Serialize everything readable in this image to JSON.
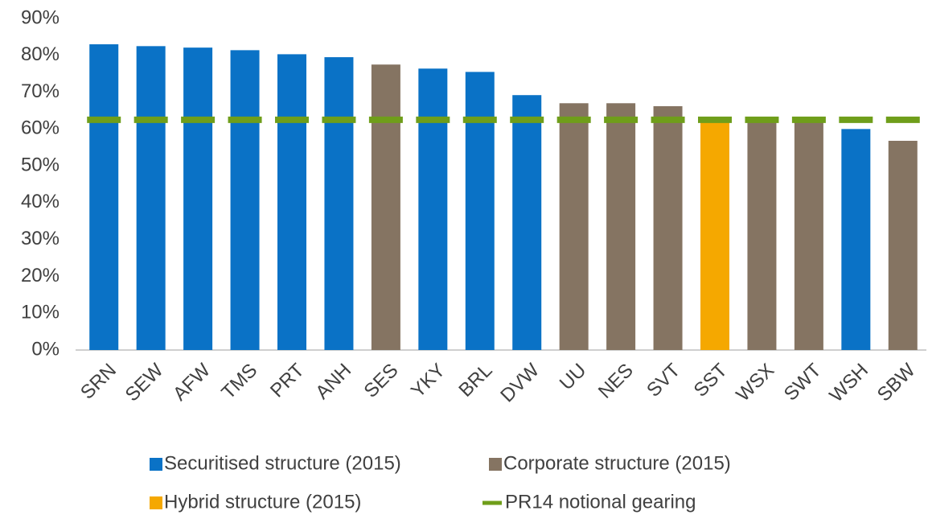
{
  "chart_data": {
    "type": "bar",
    "categories": [
      "SRN",
      "SEW",
      "AFW",
      "TMS",
      "PRT",
      "ANH",
      "SES",
      "YKY",
      "BRL",
      "DVW",
      "UU",
      "NES",
      "SVT",
      "SST",
      "WSX",
      "SWT",
      "WSH",
      "SBW"
    ],
    "series": [
      {
        "name": "Securitised structure (2015)",
        "color": "#0a72c6",
        "values": [
          83.0,
          82.5,
          82.1,
          81.4,
          80.3,
          79.5,
          null,
          76.4,
          75.5,
          69.2,
          null,
          null,
          null,
          null,
          null,
          null,
          60.0,
          null
        ]
      },
      {
        "name": "Corporate structure (2015)",
        "color": "#857462",
        "values": [
          null,
          null,
          null,
          null,
          null,
          null,
          77.5,
          null,
          null,
          null,
          67.0,
          67.0,
          66.2,
          null,
          62.5,
          62.5,
          null,
          56.8
        ]
      },
      {
        "name": "Hybrid structure (2015)",
        "color": "#f5a800",
        "values": [
          null,
          null,
          null,
          null,
          null,
          null,
          null,
          null,
          null,
          null,
          null,
          null,
          null,
          62.5,
          null,
          null,
          null,
          null
        ]
      },
      {
        "name": "PR14 notional gearing",
        "color": "#6f9e1a",
        "type": "line",
        "values": [
          62.5,
          62.5,
          62.5,
          62.5,
          62.5,
          62.5,
          62.5,
          62.5,
          62.5,
          62.5,
          62.5,
          62.5,
          62.5,
          62.5,
          62.5,
          62.5,
          62.5,
          62.5
        ]
      }
    ],
    "ylim": [
      0,
      90
    ],
    "yticks": [
      {
        "value": 0,
        "label": "0%"
      },
      {
        "value": 10,
        "label": "10%"
      },
      {
        "value": 20,
        "label": "20%"
      },
      {
        "value": 30,
        "label": "30%"
      },
      {
        "value": 40,
        "label": "40%"
      },
      {
        "value": 50,
        "label": "50%"
      },
      {
        "value": 60,
        "label": "60%"
      },
      {
        "value": 70,
        "label": "70%"
      },
      {
        "value": 80,
        "label": "80%"
      },
      {
        "value": 90,
        "label": "90%"
      }
    ],
    "grid": false,
    "legend": "bottom"
  }
}
